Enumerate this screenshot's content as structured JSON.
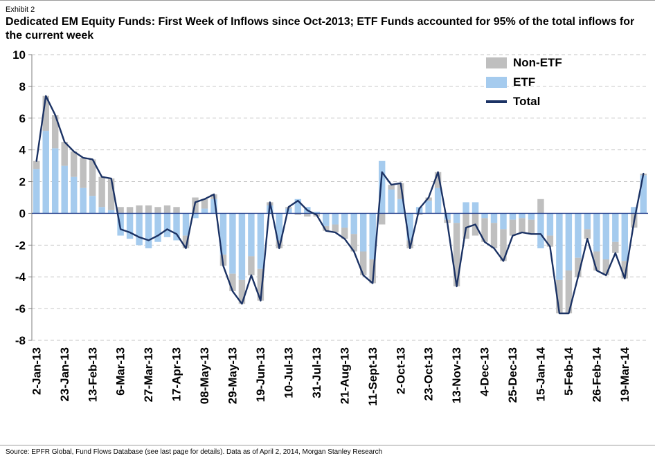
{
  "page": {
    "exhibit_label": "Exhibit 2",
    "title": "Dedicated EM Equity Funds: First Week of Inflows since Oct-2013;  ETF Funds accounted for 95% of the total inflows for the current week",
    "source": "Source: EPFR Global, Fund Flows Database (see last page for details). Data as of April 2, 2014, Morgan Stanley Research"
  },
  "legend": {
    "non_etf": "Non-ETF",
    "etf": "ETF",
    "total": "Total"
  },
  "colors": {
    "etf": "#A5CBEE",
    "non_etf": "#BFBFBF",
    "total_line": "#1B3264",
    "zero_line": "#2B4590",
    "grid": "#C6C6C6",
    "axis": "#7F7F7F"
  },
  "chart_data": {
    "type": "bar",
    "subtype": "stacked-bars-with-total-line",
    "title": "Dedicated EM Equity Funds weekly flows ($bn)",
    "xlabel": "",
    "ylabel": "",
    "ylim": [
      -8,
      10
    ],
    "ytick_step": 2,
    "grid": "dashed horizontal",
    "legend_position": "top-right",
    "x_tick_every": 3,
    "x_tick_labels": [
      "2-Jan-13",
      "23-Jan-13",
      "13-Feb-13",
      "6-Mar-13",
      "27-Mar-13",
      "17-Apr-13",
      "08-May-13",
      "29-May-13",
      "19-Jun-13",
      "10-Jul-13",
      "31-Jul-13",
      "21-Aug-13",
      "11-Sept-13",
      "2-Oct-13",
      "23-Oct-13",
      "13-Nov-13",
      "4-Dec-13",
      "25-Dec-13",
      "15-Jan-14",
      "5-Feb-14",
      "26-Feb-14",
      "19-Mar-14"
    ],
    "series": [
      {
        "name": "ETF",
        "type": "bar",
        "color_key": "etf",
        "values": [
          2.8,
          5.2,
          4.1,
          3.0,
          2.3,
          1.6,
          1.1,
          0.4,
          0.2,
          -1.4,
          -1.6,
          -2.0,
          -2.2,
          -1.8,
          -1.5,
          -1.7,
          -1.4,
          -0.3,
          0.3,
          0.9,
          -2.6,
          -3.8,
          -4.2,
          -2.7,
          -3.5,
          0.5,
          -1.7,
          0.3,
          0.9,
          0.4,
          0.1,
          -0.8,
          -0.7,
          -0.9,
          -1.3,
          -2.4,
          -2.9,
          3.3,
          1.5,
          0.9,
          -1.7,
          0.4,
          0.8,
          1.6,
          -0.4,
          -0.6,
          0.7,
          0.7,
          -0.3,
          -0.6,
          -1.0,
          -0.4,
          -0.3,
          -0.4,
          -2.2,
          -1.4,
          -4.2,
          -3.6,
          -2.8,
          -1.0,
          -2.4,
          -2.9,
          -1.8,
          -3.0,
          0.4,
          2.4
        ]
      },
      {
        "name": "Non-ETF",
        "type": "bar",
        "color_key": "non_etf",
        "values": [
          0.5,
          2.2,
          2.1,
          1.5,
          1.6,
          1.9,
          2.3,
          1.9,
          2.0,
          0.4,
          0.4,
          0.5,
          0.5,
          0.4,
          0.5,
          0.4,
          -0.8,
          1.0,
          0.6,
          0.3,
          -0.7,
          -1.1,
          -1.5,
          -1.2,
          -2.0,
          0.2,
          -0.5,
          0.1,
          -0.1,
          -0.2,
          -0.2,
          -0.3,
          -0.5,
          -0.7,
          -1.1,
          -1.5,
          -1.5,
          -0.7,
          0.3,
          1.0,
          -0.5,
          -0.1,
          0.2,
          1.0,
          -0.2,
          -4.0,
          -1.6,
          -1.4,
          -1.5,
          -1.6,
          -2.0,
          -1.0,
          -0.9,
          -0.9,
          0.9,
          -0.7,
          -2.1,
          -2.7,
          -1.2,
          -0.6,
          -1.2,
          -1.0,
          -0.7,
          -1.1,
          -0.9,
          0.1
        ]
      },
      {
        "name": "Total",
        "type": "line",
        "color_key": "total_line",
        "values": [
          3.3,
          7.4,
          6.2,
          4.5,
          3.9,
          3.5,
          3.4,
          2.3,
          2.2,
          -1.0,
          -1.2,
          -1.5,
          -1.7,
          -1.4,
          -1.0,
          -1.3,
          -2.2,
          0.7,
          0.9,
          1.2,
          -3.3,
          -4.9,
          -5.7,
          -3.9,
          -5.5,
          0.7,
          -2.2,
          0.4,
          0.8,
          0.2,
          -0.1,
          -1.1,
          -1.2,
          -1.6,
          -2.4,
          -3.9,
          -4.4,
          2.6,
          1.8,
          1.9,
          -2.2,
          0.3,
          1.0,
          2.6,
          -0.6,
          -4.6,
          -0.9,
          -0.7,
          -1.8,
          -2.2,
          -3.0,
          -1.4,
          -1.2,
          -1.3,
          -1.3,
          -2.1,
          -6.3,
          -6.3,
          -4.0,
          -1.6,
          -3.6,
          -3.9,
          -2.5,
          -4.1,
          -0.5,
          2.5
        ]
      }
    ]
  }
}
